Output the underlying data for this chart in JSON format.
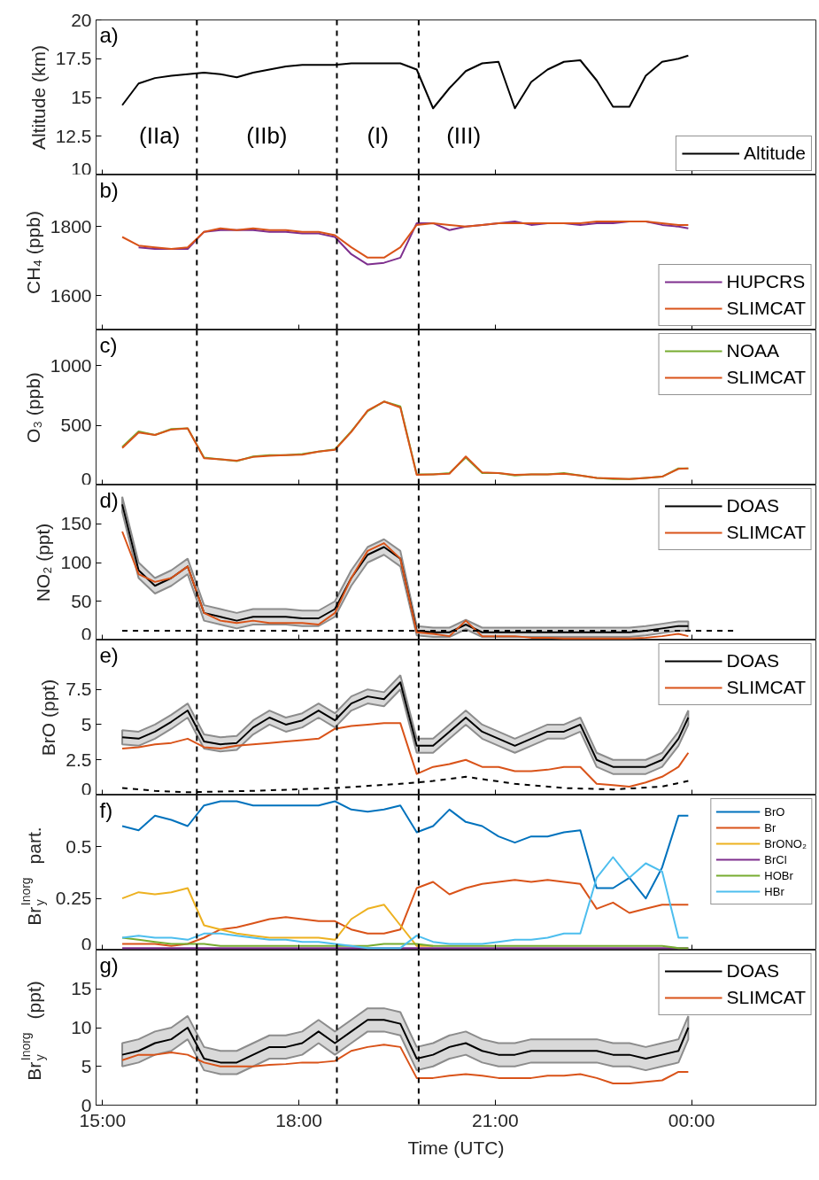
{
  "chart_data": [
    {
      "type": "line",
      "ylabel": "Altitude (km)",
      "ylim": [
        10,
        20
      ],
      "yticks": [
        10,
        12.5,
        15,
        17.5,
        20
      ],
      "xlim": [
        14.9,
        25.9
      ],
      "xticks": [
        15,
        18,
        21,
        24
      ],
      "tick_labels": "y",
      "legend": "bottom right",
      "grid": false,
      "ref_lines": [
        {
          "axis": "x",
          "value": 16.44,
          "line_style": "dashed",
          "color": "#000000"
        },
        {
          "axis": "x",
          "value": 18.58,
          "line_style": "dashed",
          "color": "#000000"
        },
        {
          "axis": "x",
          "value": 19.83,
          "line_style": "dashed",
          "color": "#000000"
        }
      ],
      "annotations": [
        "a)",
        "(IIa)",
        "(IIb)",
        "(I)",
        "(III)"
      ],
      "x": [
        15.3,
        15.55,
        15.8,
        16.05,
        16.3,
        16.55,
        16.8,
        17.05,
        17.3,
        17.55,
        17.8,
        18.05,
        18.3,
        18.55,
        18.8,
        19.05,
        19.3,
        19.55,
        19.8,
        20.05,
        20.3,
        20.55,
        20.8,
        21.05,
        21.3,
        21.55,
        21.8,
        22.05,
        22.3,
        22.55,
        22.8,
        23.05,
        23.3,
        23.55,
        23.8,
        23.95
      ],
      "series": [
        {
          "name": "Altitude",
          "color": "#000000",
          "values": [
            14.5,
            15.9,
            16.25,
            16.4,
            16.5,
            16.6,
            16.5,
            16.3,
            16.6,
            16.8,
            17.0,
            17.1,
            17.1,
            17.1,
            17.2,
            17.2,
            17.2,
            17.2,
            16.8,
            14.3,
            15.6,
            16.7,
            17.2,
            17.3,
            14.3,
            16.0,
            16.8,
            17.3,
            17.4,
            16.1,
            14.4,
            14.4,
            16.4,
            17.3,
            17.5,
            17.7
          ]
        }
      ]
    },
    {
      "type": "line",
      "ylabel": "CH₄ (ppb)",
      "ylim": [
        1500,
        1950
      ],
      "yticks": [
        1600,
        1800
      ],
      "xlim": [
        14.9,
        25.9
      ],
      "xticks": [
        15,
        18,
        21,
        24
      ],
      "tick_labels": "y",
      "legend": "bottom right",
      "grid": false,
      "ref_lines": [
        {
          "axis": "x",
          "value": 16.44,
          "line_style": "dashed",
          "color": "#000000"
        },
        {
          "axis": "x",
          "value": 18.58,
          "line_style": "dashed",
          "color": "#000000"
        },
        {
          "axis": "x",
          "value": 19.83,
          "line_style": "dashed",
          "color": "#000000"
        }
      ],
      "annotations": [
        "b)"
      ],
      "x": [
        15.3,
        15.55,
        15.8,
        16.05,
        16.3,
        16.55,
        16.8,
        17.05,
        17.3,
        17.55,
        17.8,
        18.05,
        18.3,
        18.55,
        18.8,
        19.05,
        19.3,
        19.55,
        19.8,
        20.05,
        20.3,
        20.55,
        20.8,
        21.05,
        21.3,
        21.55,
        21.8,
        22.05,
        22.3,
        22.55,
        22.8,
        23.05,
        23.3,
        23.55,
        23.8,
        23.95
      ],
      "series": [
        {
          "name": "HUPCRS",
          "color": "#7e2f8e",
          "values": [
            null,
            1740,
            1735,
            1735,
            1735,
            1785,
            1790,
            1790,
            1790,
            1785,
            1785,
            1780,
            1780,
            1770,
            1720,
            1690,
            1695,
            1710,
            1810,
            1810,
            1790,
            1800,
            1805,
            1810,
            1815,
            1805,
            1810,
            1810,
            1805,
            1810,
            1810,
            1815,
            1815,
            1805,
            1800,
            1795
          ]
        },
        {
          "name": "SLIMCAT",
          "color": "#d95319",
          "values": [
            1770,
            1745,
            1740,
            1735,
            1740,
            1785,
            1795,
            1790,
            1795,
            1790,
            1790,
            1785,
            1785,
            1775,
            1740,
            1710,
            1710,
            1740,
            1805,
            1810,
            1805,
            1800,
            1805,
            1810,
            1810,
            1810,
            1810,
            1810,
            1810,
            1815,
            1815,
            1815,
            1815,
            1810,
            1805,
            1805
          ]
        }
      ]
    },
    {
      "type": "line",
      "ylabel": "O₃ (ppb)",
      "ylim": [
        0,
        1300
      ],
      "yticks": [
        0,
        500,
        1000
      ],
      "xlim": [
        14.9,
        25.9
      ],
      "xticks": [
        15,
        18,
        21,
        24
      ],
      "tick_labels": "y",
      "legend": "top right",
      "grid": false,
      "ref_lines": [
        {
          "axis": "x",
          "value": 16.44,
          "line_style": "dashed",
          "color": "#000000"
        },
        {
          "axis": "x",
          "value": 18.58,
          "line_style": "dashed",
          "color": "#000000"
        },
        {
          "axis": "x",
          "value": 19.83,
          "line_style": "dashed",
          "color": "#000000"
        }
      ],
      "annotations": [
        "c)"
      ],
      "x": [
        15.3,
        15.55,
        15.8,
        16.05,
        16.3,
        16.55,
        16.8,
        17.05,
        17.3,
        17.55,
        17.8,
        18.05,
        18.3,
        18.55,
        18.8,
        19.05,
        19.3,
        19.55,
        19.8,
        20.05,
        20.3,
        20.55,
        20.8,
        21.05,
        21.3,
        21.55,
        21.8,
        22.05,
        22.3,
        22.55,
        22.8,
        23.05,
        23.3,
        23.55,
        23.8,
        23.95
      ],
      "series": [
        {
          "name": "NOAA",
          "color": "#77ac30",
          "values": [
            320,
            450,
            420,
            470,
            475,
            230,
            215,
            200,
            240,
            250,
            250,
            260,
            280,
            300,
            450,
            620,
            700,
            660,
            90,
            90,
            100,
            230,
            100,
            100,
            80,
            90,
            90,
            100,
            80,
            60,
            50,
            50,
            60,
            70,
            140,
            140
          ]
        },
        {
          "name": "SLIMCAT",
          "color": "#d95319",
          "values": [
            310,
            440,
            420,
            465,
            475,
            225,
            215,
            205,
            235,
            245,
            250,
            255,
            280,
            295,
            445,
            625,
            700,
            650,
            85,
            90,
            95,
            240,
            105,
            100,
            85,
            90,
            90,
            95,
            80,
            60,
            55,
            50,
            60,
            70,
            135,
            140
          ]
        }
      ]
    },
    {
      "type": "line",
      "ylabel": "NO₂ (ppt)",
      "ylim": [
        0,
        200
      ],
      "yticks": [
        0,
        50,
        100,
        150
      ],
      "xlim": [
        14.9,
        25.9
      ],
      "xticks": [
        15,
        18,
        21,
        24
      ],
      "tick_labels": "y",
      "legend": "top right",
      "grid": false,
      "ref_lines": [
        {
          "axis": "x",
          "value": 16.44,
          "line_style": "dashed",
          "color": "#000000"
        },
        {
          "axis": "x",
          "value": 18.58,
          "line_style": "dashed",
          "color": "#000000"
        },
        {
          "axis": "x",
          "value": 19.83,
          "line_style": "dashed",
          "color": "#000000"
        }
      ],
      "annotations": [
        "d)"
      ],
      "x": [
        15.3,
        15.55,
        15.8,
        16.05,
        16.3,
        16.55,
        16.8,
        17.05,
        17.3,
        17.55,
        17.8,
        18.05,
        18.3,
        18.55,
        18.8,
        19.05,
        19.3,
        19.55,
        19.8,
        20.05,
        20.3,
        20.55,
        20.8,
        21.05,
        21.3,
        21.55,
        21.8,
        22.05,
        22.3,
        22.55,
        22.8,
        23.05,
        23.3,
        23.55,
        23.8,
        23.95
      ],
      "series": [
        {
          "name": "DOAS",
          "color": "#000000",
          "values": [
            175,
            90,
            70,
            80,
            95,
            35,
            30,
            25,
            30,
            30,
            30,
            28,
            28,
            40,
            80,
            110,
            120,
            105,
            12,
            10,
            10,
            20,
            10,
            10,
            10,
            10,
            10,
            10,
            10,
            10,
            10,
            10,
            12,
            15,
            18,
            18
          ],
          "lower": [
            165,
            80,
            60,
            70,
            85,
            25,
            20,
            15,
            20,
            20,
            20,
            18,
            18,
            30,
            70,
            100,
            110,
            95,
            6,
            4,
            4,
            14,
            4,
            4,
            4,
            4,
            4,
            4,
            4,
            4,
            4,
            4,
            6,
            9,
            12,
            12
          ],
          "upper": [
            185,
            100,
            80,
            90,
            105,
            45,
            40,
            35,
            40,
            40,
            40,
            38,
            38,
            50,
            90,
            120,
            130,
            115,
            18,
            16,
            16,
            26,
            16,
            16,
            16,
            16,
            16,
            16,
            16,
            16,
            16,
            16,
            18,
            21,
            24,
            24
          ]
        },
        {
          "name": "SLIMCAT",
          "color": "#d95319",
          "values": [
            140,
            85,
            75,
            80,
            95,
            35,
            25,
            22,
            25,
            22,
            22,
            22,
            20,
            35,
            80,
            115,
            125,
            105,
            10,
            8,
            5,
            25,
            5,
            5,
            5,
            3,
            3,
            2,
            2,
            2,
            2,
            2,
            3,
            5,
            8,
            5
          ]
        },
        {
          "color": "#000000",
          "line_style": "dashed",
          "x": [
            15.3,
            24.66
          ],
          "values": [
            12,
            12
          ]
        }
      ]
    },
    {
      "type": "line",
      "ylabel": "BrO (ppt)",
      "ylim": [
        0,
        11
      ],
      "yticks": [
        0,
        2.5,
        5,
        7.5
      ],
      "xlim": [
        14.9,
        25.9
      ],
      "xticks": [
        15,
        18,
        21,
        24
      ],
      "tick_labels": "y",
      "legend": "top right",
      "grid": false,
      "ref_lines": [
        {
          "axis": "x",
          "value": 16.44,
          "line_style": "dashed",
          "color": "#000000"
        },
        {
          "axis": "x",
          "value": 18.58,
          "line_style": "dashed",
          "color": "#000000"
        },
        {
          "axis": "x",
          "value": 19.83,
          "line_style": "dashed",
          "color": "#000000"
        }
      ],
      "annotations": [
        "e)"
      ],
      "x": [
        15.3,
        15.55,
        15.8,
        16.05,
        16.3,
        16.55,
        16.8,
        17.05,
        17.3,
        17.55,
        17.8,
        18.05,
        18.3,
        18.55,
        18.8,
        19.05,
        19.3,
        19.55,
        19.8,
        20.05,
        20.3,
        20.55,
        20.8,
        21.05,
        21.3,
        21.55,
        21.8,
        22.05,
        22.3,
        22.55,
        22.8,
        23.05,
        23.3,
        23.55,
        23.8,
        23.95
      ],
      "series": [
        {
          "name": "DOAS",
          "color": "#000000",
          "values": [
            4.1,
            4.0,
            4.5,
            5.2,
            6.0,
            3.8,
            3.6,
            3.7,
            4.8,
            5.5,
            5.0,
            5.3,
            6.0,
            5.3,
            6.5,
            7.0,
            6.8,
            8.0,
            3.5,
            3.5,
            4.5,
            5.5,
            4.5,
            4.0,
            3.5,
            4.0,
            4.5,
            4.5,
            5.0,
            2.5,
            2.0,
            2.0,
            2.0,
            2.5,
            4.0,
            5.5
          ],
          "lower": [
            3.6,
            3.5,
            4.0,
            4.7,
            5.5,
            3.3,
            3.1,
            3.2,
            4.3,
            5.0,
            4.5,
            4.8,
            5.5,
            4.8,
            6.0,
            6.5,
            6.3,
            7.5,
            3.0,
            3.0,
            4.0,
            5.0,
            4.0,
            3.5,
            3.0,
            3.5,
            4.0,
            4.0,
            4.5,
            2.0,
            1.5,
            1.5,
            1.5,
            2.0,
            3.5,
            5.0
          ],
          "upper": [
            4.6,
            4.5,
            5.0,
            5.7,
            6.5,
            4.3,
            4.1,
            4.2,
            5.3,
            6.0,
            5.5,
            5.8,
            6.5,
            5.8,
            7.0,
            7.5,
            7.3,
            8.5,
            4.0,
            4.0,
            5.0,
            6.0,
            5.0,
            4.5,
            4.0,
            4.5,
            5.0,
            5.0,
            5.5,
            3.0,
            2.5,
            2.5,
            2.5,
            3.0,
            4.5,
            6.0
          ]
        },
        {
          "name": "SLIMCAT",
          "color": "#d95319",
          "values": [
            3.3,
            3.4,
            3.6,
            3.7,
            4.0,
            3.4,
            3.3,
            3.5,
            3.6,
            3.7,
            3.8,
            3.9,
            4.0,
            4.7,
            4.9,
            5.0,
            5.1,
            5.1,
            1.5,
            2.0,
            2.2,
            2.5,
            2.0,
            2.0,
            1.7,
            1.7,
            1.8,
            2.0,
            2.0,
            0.8,
            0.7,
            0.6,
            0.9,
            1.3,
            2.0,
            3.0
          ]
        },
        {
          "color": "#000000",
          "line_style": "dashed",
          "x": [
            15.3,
            15.8,
            16.3,
            17.3,
            18.55,
            19.55,
            20.05,
            20.55,
            21.3,
            22.05,
            22.8,
            23.55,
            23.95
          ],
          "values": [
            0.5,
            0.3,
            0.2,
            0.3,
            0.5,
            0.8,
            1.0,
            1.3,
            0.8,
            0.5,
            0.4,
            0.6,
            1.0
          ]
        }
      ]
    },
    {
      "type": "line",
      "ylabel": "Br$_{y}$$^{Inorg}$ part.",
      "ylim": [
        0,
        0.75
      ],
      "yticks": [
        0,
        0.25,
        0.5
      ],
      "xlim": [
        14.9,
        25.9
      ],
      "xticks": [
        15,
        18,
        21,
        24
      ],
      "tick_labels": "y",
      "legend": "top right",
      "grid": false,
      "ref_lines": [
        {
          "axis": "x",
          "value": 16.44,
          "line_style": "dashed",
          "color": "#000000"
        },
        {
          "axis": "x",
          "value": 18.58,
          "line_style": "dashed",
          "color": "#000000"
        },
        {
          "axis": "x",
          "value": 19.83,
          "line_style": "dashed",
          "color": "#000000"
        }
      ],
      "annotations": [
        "f)"
      ],
      "x": [
        15.3,
        15.55,
        15.8,
        16.05,
        16.3,
        16.55,
        16.8,
        17.05,
        17.3,
        17.55,
        17.8,
        18.05,
        18.3,
        18.55,
        18.8,
        19.05,
        19.3,
        19.55,
        19.8,
        20.05,
        20.3,
        20.55,
        20.8,
        21.05,
        21.3,
        21.55,
        21.8,
        22.05,
        22.3,
        22.55,
        22.8,
        23.05,
        23.3,
        23.55,
        23.8,
        23.95
      ],
      "series": [
        {
          "name": "BrO",
          "color": "#0072bd",
          "values": [
            0.6,
            0.58,
            0.65,
            0.63,
            0.6,
            0.7,
            0.72,
            0.72,
            0.7,
            0.7,
            0.7,
            0.7,
            0.7,
            0.72,
            0.68,
            0.67,
            0.68,
            0.7,
            0.57,
            0.6,
            0.68,
            0.62,
            0.6,
            0.55,
            0.52,
            0.55,
            0.55,
            0.57,
            0.58,
            0.3,
            0.3,
            0.35,
            0.25,
            0.4,
            0.65,
            0.65
          ]
        },
        {
          "name": "Br",
          "color": "#d95319",
          "values": [
            0.03,
            0.03,
            0.03,
            0.02,
            0.03,
            0.06,
            0.1,
            0.11,
            0.13,
            0.15,
            0.16,
            0.15,
            0.14,
            0.14,
            0.1,
            0.08,
            0.08,
            0.1,
            0.3,
            0.33,
            0.27,
            0.3,
            0.32,
            0.33,
            0.34,
            0.33,
            0.34,
            0.33,
            0.32,
            0.2,
            0.23,
            0.18,
            0.2,
            0.22,
            0.22,
            0.22
          ]
        },
        {
          "name": "BrONO₂",
          "color": "#edb120",
          "values": [
            0.25,
            0.28,
            0.27,
            0.28,
            0.3,
            0.12,
            0.1,
            0.08,
            0.07,
            0.06,
            0.06,
            0.06,
            0.06,
            0.05,
            0.15,
            0.2,
            0.22,
            0.12,
            0.02,
            0.02,
            null,
            null,
            null,
            null,
            null,
            null,
            null,
            null,
            null,
            null,
            null,
            null,
            null,
            null,
            null,
            null
          ]
        },
        {
          "name": "BrCl",
          "color": "#7e2f8e",
          "values": [
            0.01,
            0.01,
            0.01,
            0.01,
            0.01,
            0.01,
            0.01,
            0.01,
            0.01,
            0.01,
            0.01,
            0.01,
            0.01,
            0.01,
            0.01,
            0.01,
            0.01,
            0.01,
            0.01,
            0.01,
            0.01,
            0.01,
            0.01,
            0.01,
            0.01,
            0.01,
            0.01,
            0.01,
            0.01,
            0.01,
            0.01,
            0.01,
            0.01,
            0.01,
            0.01,
            0.01
          ]
        },
        {
          "name": "HOBr",
          "color": "#77ac30",
          "values": [
            0.06,
            0.05,
            0.04,
            0.03,
            0.03,
            0.03,
            0.02,
            0.02,
            0.02,
            0.02,
            0.02,
            0.02,
            0.02,
            0.02,
            0.02,
            0.02,
            0.03,
            0.03,
            0.03,
            0.02,
            0.02,
            0.02,
            0.02,
            0.02,
            0.02,
            0.02,
            0.02,
            0.02,
            0.02,
            0.02,
            0.02,
            0.02,
            0.02,
            0.02,
            0.01,
            0.01
          ]
        },
        {
          "name": "HBr",
          "color": "#4dbeee",
          "values": [
            0.06,
            0.07,
            0.06,
            0.06,
            0.05,
            0.08,
            0.08,
            0.07,
            0.06,
            0.05,
            0.05,
            0.04,
            0.04,
            0.03,
            0.02,
            0.01,
            0.01,
            0.01,
            0.07,
            0.04,
            0.03,
            0.03,
            0.03,
            0.04,
            0.05,
            0.05,
            0.06,
            0.08,
            0.08,
            0.35,
            0.45,
            0.35,
            0.42,
            0.38,
            0.06,
            0.06
          ]
        }
      ]
    },
    {
      "type": "line",
      "ylabel": "Br$_{y}$$^{Inorg}$ (ppt)",
      "xlabel": "Time (UTC)",
      "ylim": [
        0,
        20
      ],
      "yticks": [
        0,
        5,
        10,
        15
      ],
      "xlim": [
        14.9,
        25.9
      ],
      "xticks": [
        {
          "value": 15,
          "label": "15:00"
        },
        {
          "value": 18,
          "label": "18:00"
        },
        {
          "value": 21,
          "label": "21:00"
        },
        {
          "value": 24,
          "label": "00:00"
        }
      ],
      "legend": "top right",
      "grid": false,
      "ref_lines": [
        {
          "axis": "x",
          "value": 16.44,
          "line_style": "dashed",
          "color": "#000000"
        },
        {
          "axis": "x",
          "value": 18.58,
          "line_style": "dashed",
          "color": "#000000"
        },
        {
          "axis": "x",
          "value": 19.83,
          "line_style": "dashed",
          "color": "#000000"
        }
      ],
      "annotations": [
        "g)"
      ],
      "x": [
        15.3,
        15.55,
        15.8,
        16.05,
        16.3,
        16.55,
        16.8,
        17.05,
        17.3,
        17.55,
        17.8,
        18.05,
        18.3,
        18.55,
        18.8,
        19.05,
        19.3,
        19.55,
        19.8,
        20.05,
        20.3,
        20.55,
        20.8,
        21.05,
        21.3,
        21.55,
        21.8,
        22.05,
        22.3,
        22.55,
        22.8,
        23.05,
        23.3,
        23.55,
        23.8,
        23.95
      ],
      "series": [
        {
          "name": "DOAS",
          "color": "#000000",
          "values": [
            6.5,
            7.0,
            8.0,
            8.5,
            10.0,
            6.0,
            5.5,
            5.5,
            6.5,
            7.5,
            7.5,
            8.0,
            9.5,
            8.0,
            9.5,
            11,
            11,
            10.5,
            6.0,
            6.5,
            7.5,
            8.0,
            7.0,
            6.5,
            6.5,
            7.0,
            7.0,
            7.0,
            7.0,
            7.0,
            6.5,
            6.5,
            6.0,
            6.5,
            7.0,
            10.0
          ],
          "lower": [
            5,
            5.5,
            6.5,
            7,
            8.5,
            4.5,
            4,
            4,
            5,
            6,
            6,
            6.5,
            8,
            6.5,
            8,
            9.5,
            9.5,
            9,
            4.5,
            5,
            6,
            6.5,
            5.5,
            5,
            5,
            5.5,
            5.5,
            5.5,
            5.5,
            5.5,
            5,
            5,
            4.5,
            5,
            5.5,
            8.5
          ],
          "upper": [
            8,
            8.5,
            9.5,
            10,
            11.5,
            7.5,
            7,
            7,
            8,
            9,
            9,
            9.5,
            11,
            9.5,
            11,
            12.5,
            12.5,
            12,
            7.5,
            8,
            9,
            9.5,
            8.5,
            8,
            8,
            8.5,
            8.5,
            8.5,
            8.5,
            8.5,
            8,
            8,
            7.5,
            8,
            8.5,
            11.5
          ]
        },
        {
          "name": "SLIMCAT",
          "color": "#d95319",
          "values": [
            5.8,
            6.5,
            6.5,
            6.8,
            6.5,
            5.5,
            5.0,
            5.0,
            5.0,
            5.2,
            5.3,
            5.5,
            5.5,
            5.7,
            7.0,
            7.5,
            7.8,
            7.5,
            3.5,
            3.5,
            3.8,
            4.0,
            3.8,
            3.5,
            3.5,
            3.5,
            3.8,
            3.8,
            4.0,
            3.5,
            2.8,
            2.8,
            3.0,
            3.2,
            4.3,
            4.3
          ]
        }
      ]
    }
  ]
}
